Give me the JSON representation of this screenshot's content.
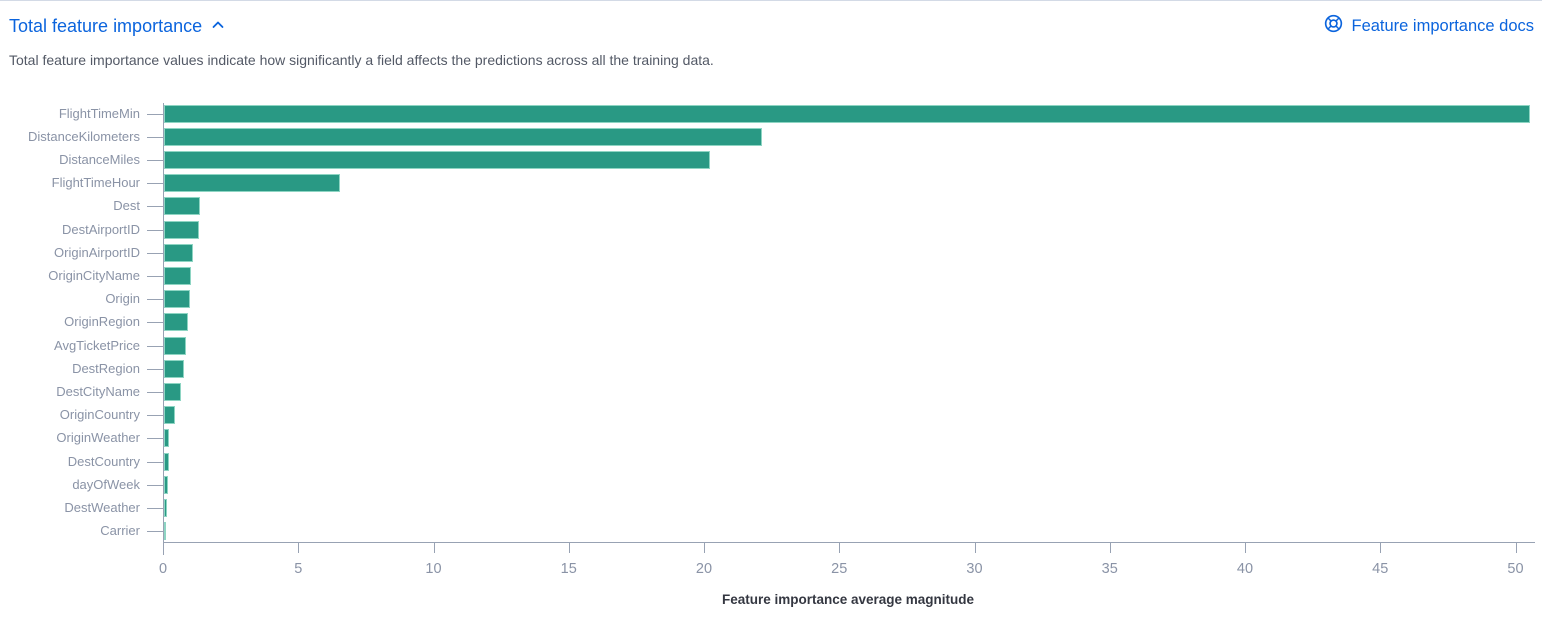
{
  "header": {
    "title": "Total feature importance",
    "docs_link_label": "Feature importance docs"
  },
  "description": "Total feature importance values indicate how significantly a field affects the predictions across all the training data.",
  "icons": {
    "chevron_up": "chevron-up-icon",
    "lifebuoy": "documentation-icon"
  },
  "colors": {
    "bar": "#299984",
    "bar_border": "#8ed5c3",
    "link": "#0b64dd",
    "axis": "#98a2b3",
    "tick_label": "#8a93a6",
    "text": "#535966",
    "axis_title": "#343741"
  },
  "chart_data": {
    "type": "bar",
    "orientation": "horizontal",
    "title": "Total feature importance",
    "categories": [
      "FlightTimeMin",
      "DistanceKilometers",
      "DistanceMiles",
      "FlightTimeHour",
      "Dest",
      "DestAirportID",
      "OriginAirportID",
      "OriginCityName",
      "Origin",
      "OriginRegion",
      "AvgTicketPrice",
      "DestRegion",
      "DestCityName",
      "OriginCountry",
      "OriginWeather",
      "DestCountry",
      "dayOfWeek",
      "DestWeather",
      "Carrier"
    ],
    "values": [
      50.5,
      22.1,
      20.2,
      6.5,
      1.33,
      1.3,
      1.08,
      0.99,
      0.96,
      0.89,
      0.83,
      0.73,
      0.62,
      0.42,
      0.19,
      0.17,
      0.16,
      0.11,
      0.03
    ],
    "xlabel": "Feature importance average magnitude",
    "ylabel": "",
    "xlim": [
      0,
      50.6
    ],
    "x_ticks": [
      0,
      5,
      10,
      15,
      20,
      25,
      30,
      35,
      40,
      45,
      50
    ],
    "grid": false,
    "legend": "none"
  }
}
